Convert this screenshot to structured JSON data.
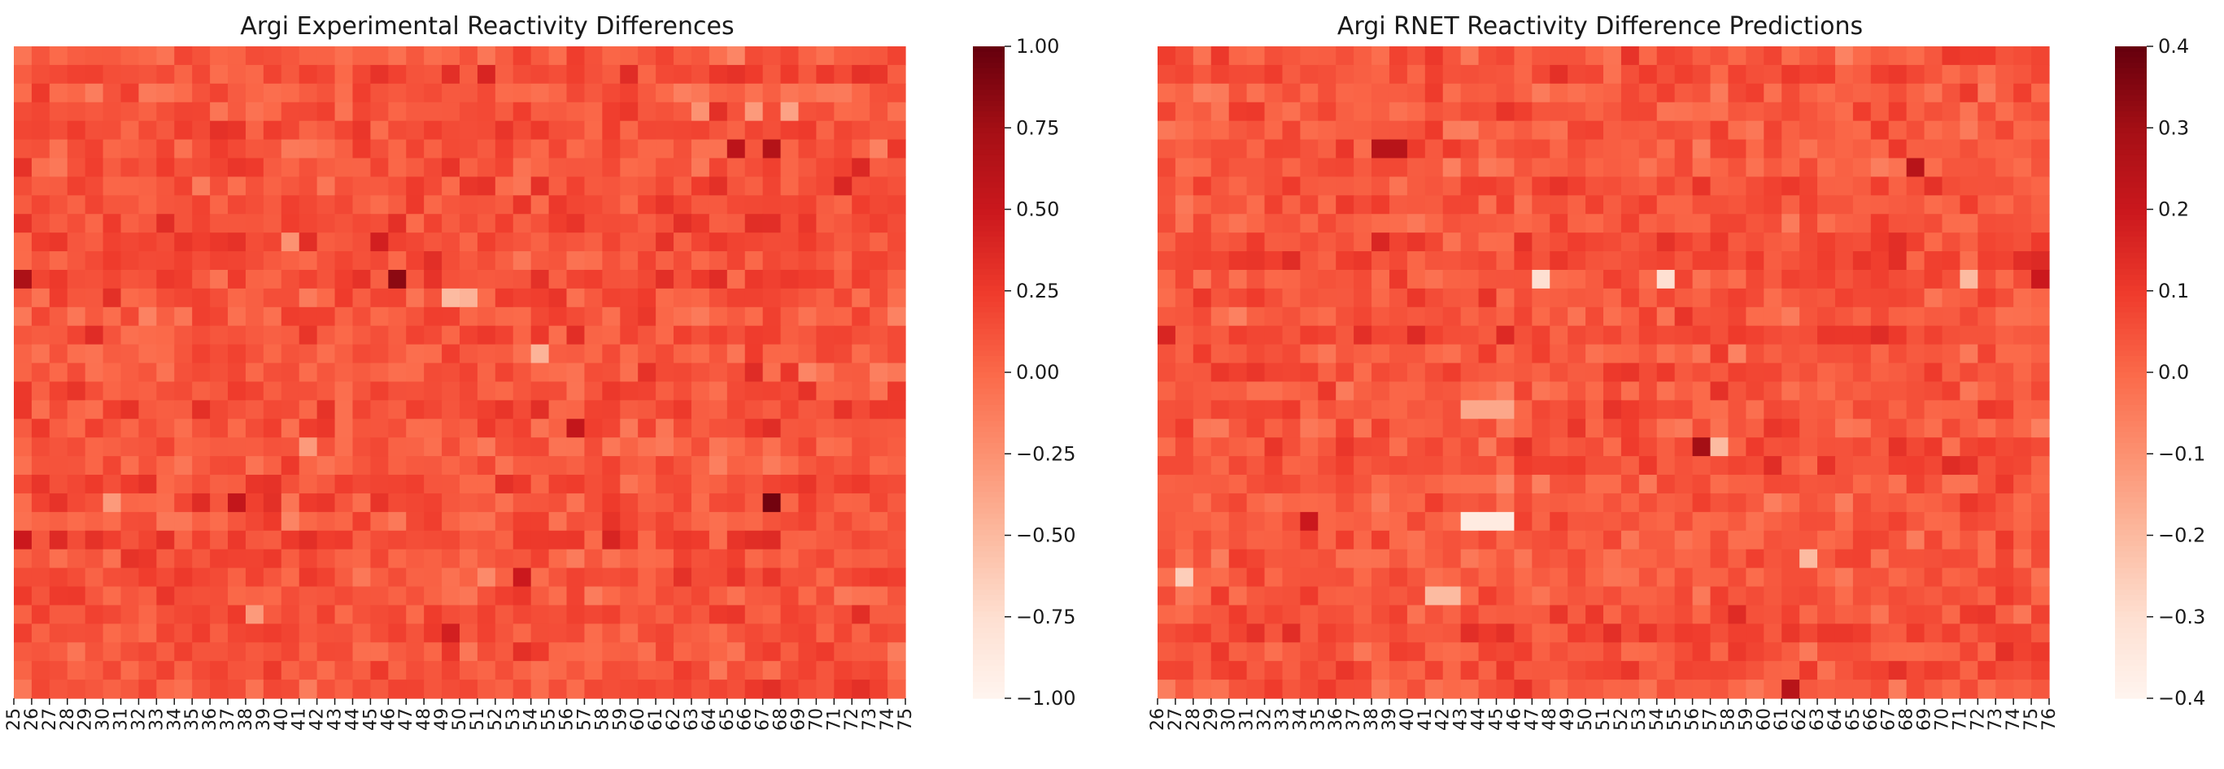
{
  "chart_data": [
    {
      "type": "heatmap",
      "title": "Argi Experimental Reactivity Differences",
      "xlabel": "",
      "ylabel": "",
      "x_tick_labels": [
        "25",
        "26",
        "27",
        "28",
        "29",
        "30",
        "31",
        "32",
        "33",
        "34",
        "35",
        "36",
        "37",
        "38",
        "39",
        "40",
        "41",
        "42",
        "43",
        "44",
        "45",
        "46",
        "47",
        "48",
        "49",
        "50",
        "51",
        "52",
        "53",
        "54",
        "55",
        "56",
        "57",
        "58",
        "59",
        "60",
        "61",
        "62",
        "63",
        "64",
        "65",
        "66",
        "67",
        "68",
        "69",
        "70",
        "71",
        "72",
        "73",
        "74",
        "75"
      ],
      "colorbar": {
        "vmin": -1.0,
        "vmax": 1.0,
        "ticks": [
          1.0,
          0.75,
          0.5,
          0.25,
          0.0,
          -0.25,
          -0.5,
          -0.75,
          -1.0
        ],
        "tick_labels": [
          "1.00",
          "0.75",
          "0.50",
          "0.25",
          "0.00",
          "−0.25",
          "−0.50",
          "−0.75",
          "−1.00"
        ],
        "colormap": "Reds"
      },
      "grid_rows": 35,
      "base_value": 0.12,
      "hotspots": [
        {
          "row": 3,
          "col": 41,
          "value": -0.3
        },
        {
          "row": 3,
          "col": 43,
          "value": -0.35
        },
        {
          "row": 3,
          "col": 38,
          "value": -0.25
        },
        {
          "row": 5,
          "col": 40,
          "value": 0.6
        },
        {
          "row": 5,
          "col": 42,
          "value": 0.65
        },
        {
          "row": 7,
          "col": 46,
          "value": 0.4
        },
        {
          "row": 10,
          "col": 15,
          "value": -0.25
        },
        {
          "row": 10,
          "col": 20,
          "value": 0.45
        },
        {
          "row": 12,
          "col": 0,
          "value": 0.7
        },
        {
          "row": 12,
          "col": 21,
          "value": 0.85
        },
        {
          "row": 13,
          "col": 24,
          "value": -0.5
        },
        {
          "row": 13,
          "col": 25,
          "value": -0.45
        },
        {
          "row": 16,
          "col": 29,
          "value": -0.45
        },
        {
          "row": 20,
          "col": 31,
          "value": 0.55
        },
        {
          "row": 21,
          "col": 16,
          "value": -0.3
        },
        {
          "row": 24,
          "col": 42,
          "value": 0.95
        },
        {
          "row": 24,
          "col": 12,
          "value": 0.55
        },
        {
          "row": 24,
          "col": 5,
          "value": -0.3
        },
        {
          "row": 26,
          "col": 0,
          "value": 0.5
        },
        {
          "row": 28,
          "col": 28,
          "value": 0.5
        },
        {
          "row": 28,
          "col": 26,
          "value": -0.2
        },
        {
          "row": 30,
          "col": 13,
          "value": -0.3
        },
        {
          "row": 31,
          "col": 24,
          "value": 0.45
        }
      ]
    },
    {
      "type": "heatmap",
      "title": "Argi RNET Reactivity Difference Predictions",
      "xlabel": "",
      "ylabel": "",
      "x_tick_labels": [
        "26",
        "27",
        "28",
        "29",
        "30",
        "31",
        "32",
        "33",
        "34",
        "35",
        "36",
        "37",
        "38",
        "39",
        "40",
        "41",
        "42",
        "43",
        "44",
        "45",
        "46",
        "47",
        "48",
        "49",
        "50",
        "51",
        "52",
        "53",
        "54",
        "55",
        "56",
        "57",
        "58",
        "59",
        "60",
        "61",
        "62",
        "63",
        "64",
        "65",
        "66",
        "67",
        "68",
        "69",
        "70",
        "71",
        "72",
        "73",
        "74",
        "75",
        "76"
      ],
      "colorbar": {
        "vmin": -0.4,
        "vmax": 0.4,
        "ticks": [
          0.4,
          0.3,
          0.2,
          0.1,
          0.0,
          -0.1,
          -0.2,
          -0.3,
          -0.4
        ],
        "tick_labels": [
          "0.4",
          "0.3",
          "0.2",
          "0.1",
          "0.0",
          "−0.1",
          "−0.2",
          "−0.3",
          "−0.4"
        ],
        "colormap": "Reds"
      },
      "grid_rows": 35,
      "base_value": 0.05,
      "hotspots": [
        {
          "row": 5,
          "col": 12,
          "value": 0.25
        },
        {
          "row": 5,
          "col": 13,
          "value": 0.25
        },
        {
          "row": 6,
          "col": 42,
          "value": 0.25
        },
        {
          "row": 12,
          "col": 21,
          "value": -0.3
        },
        {
          "row": 12,
          "col": 28,
          "value": -0.3
        },
        {
          "row": 12,
          "col": 45,
          "value": -0.2
        },
        {
          "row": 12,
          "col": 49,
          "value": 0.2
        },
        {
          "row": 19,
          "col": 17,
          "value": -0.15
        },
        {
          "row": 19,
          "col": 18,
          "value": -0.15
        },
        {
          "row": 19,
          "col": 19,
          "value": -0.15
        },
        {
          "row": 21,
          "col": 30,
          "value": 0.3
        },
        {
          "row": 21,
          "col": 31,
          "value": -0.2
        },
        {
          "row": 25,
          "col": 17,
          "value": -0.35
        },
        {
          "row": 25,
          "col": 18,
          "value": -0.35
        },
        {
          "row": 25,
          "col": 19,
          "value": -0.35
        },
        {
          "row": 25,
          "col": 8,
          "value": 0.2
        },
        {
          "row": 27,
          "col": 36,
          "value": -0.2
        },
        {
          "row": 28,
          "col": 1,
          "value": -0.25
        },
        {
          "row": 29,
          "col": 15,
          "value": -0.2
        },
        {
          "row": 29,
          "col": 16,
          "value": -0.2
        },
        {
          "row": 34,
          "col": 35,
          "value": 0.25
        }
      ]
    }
  ]
}
